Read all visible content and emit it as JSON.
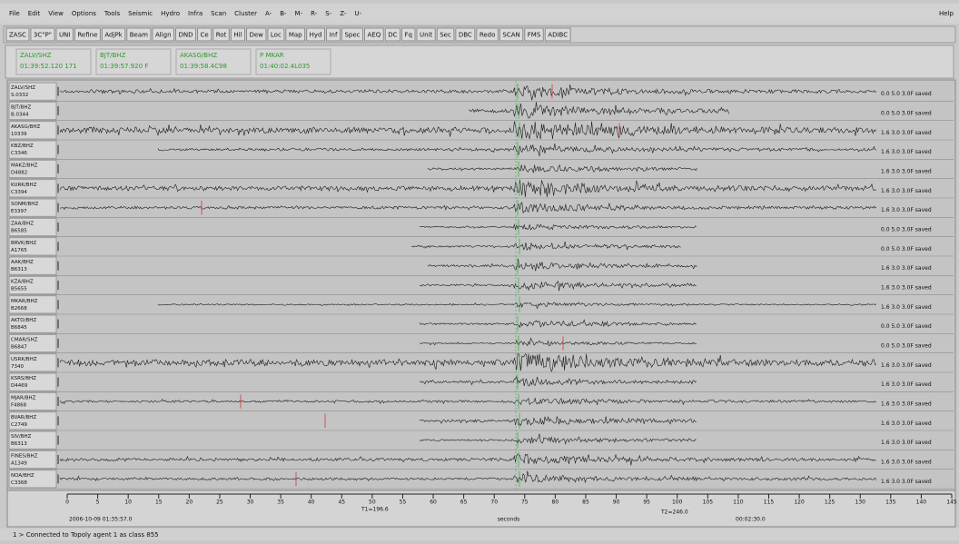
{
  "menu": [
    "File",
    "Edit",
    "View",
    "Options",
    "Tools",
    "Seismic",
    "Hydro",
    "Infra",
    "Scan",
    "Cluster",
    "A-",
    "B-",
    "M-",
    "R-",
    "S-",
    "Z-",
    "U-"
  ],
  "help": "Help",
  "toolbar": [
    "ZASC",
    "3C\"P\"",
    "UNI",
    "Refine",
    "AdjPk",
    "Beam",
    "Align",
    "DND",
    "Ce",
    "Rot",
    "Hil",
    "Dew",
    "Loc",
    "Map",
    "Hyd",
    "Inf",
    "Spec",
    "AEQ",
    "DC",
    "Fq",
    "Unit",
    "Sec",
    "DBC",
    "Redo",
    "SCAN",
    "FMS",
    "ADIBC"
  ],
  "arrivals": [
    {
      "name": "ZALV/SHZ",
      "time": "01:39:52.120 171"
    },
    {
      "name": "BJT/BHZ",
      "time": "01:39:57.920 F"
    },
    {
      "name": "AKASG/BHZ",
      "time": "01:39:58.4C98"
    },
    {
      "name": "P  MKAR",
      "time": "01:40:02.4L035"
    }
  ],
  "traces": [
    {
      "station": "ZALV/SHZ",
      "channel": "S.0332",
      "info": "0.0  5.0  3.0F saved"
    },
    {
      "station": "BJT/BHZ",
      "channel": "B.0344",
      "info": "0.0  5.0  3.0F saved"
    },
    {
      "station": "AKASG/BHZ",
      "channel": "10339",
      "info": "1.6  3.0  3.0F saved"
    },
    {
      "station": "KBZ/BHZ",
      "channel": "C3346",
      "info": "1.6  3.0  3.0F saved"
    },
    {
      "station": "MAKZ/BHZ",
      "channel": "D4882",
      "info": "1.6  3.0  3.0F saved"
    },
    {
      "station": "KURK/BHZ",
      "channel": "C3394",
      "info": "1.6  3.0  3.0F saved"
    },
    {
      "station": "SONM/BHZ",
      "channel": "E3397",
      "info": "1.6  3.0  3.0F saved"
    },
    {
      "station": "ZAA/BHZ",
      "channel": "B6585",
      "info": "0.0  5.0  3.0F saved"
    },
    {
      "station": "BRVK/BHZ",
      "channel": "A1765",
      "info": "0.0  5.0  3.0F saved"
    },
    {
      "station": "AAK/BHZ",
      "channel": "B6313",
      "info": "1.6  3.0  3.0F saved"
    },
    {
      "station": "KZA/BHZ",
      "channel": "B5655",
      "info": "1.6  3.0  3.0F saved"
    },
    {
      "station": "MKAR/BHZ",
      "channel": "B2668",
      "info": "1.6  3.0  3.0F saved"
    },
    {
      "station": "AKTO/BHZ",
      "channel": "B6845",
      "info": "0.0  5.0  3.0F saved"
    },
    {
      "station": "CMAR/SHZ",
      "channel": "B6847",
      "info": "0.0  5.0  3.0F saved"
    },
    {
      "station": "USRK/BHZ",
      "channel": "7340",
      "info": "1.6  3.0  3.0F saved"
    },
    {
      "station": "KSRS/BHZ",
      "channel": "D4469",
      "info": "1.6  3.0  3.0F saved"
    },
    {
      "station": "MJAR/BHZ",
      "channel": "F4868",
      "info": "1.6  3.0  3.0F saved"
    },
    {
      "station": "BVAR/BHZ",
      "channel": "C2749",
      "info": "1.6  3.0  3.0F saved"
    },
    {
      "station": "SIV/BHZ",
      "channel": "B6313",
      "info": "1.6  3.0  3.0F saved"
    },
    {
      "station": "FINES/BHZ",
      "channel": "A1349",
      "info": "1.6  3.0  3.0F saved"
    },
    {
      "station": "NOA/BHZ",
      "channel": "C3368",
      "info": "1.6  3.0  3.0F saved"
    }
  ],
  "time_axis": {
    "ticks": [
      0,
      5,
      10,
      15,
      20,
      25,
      30,
      35,
      40,
      45,
      50,
      55,
      60,
      65,
      70,
      75,
      80,
      85,
      90,
      95,
      100,
      105,
      110,
      115,
      120,
      125,
      130,
      135,
      140,
      145
    ],
    "label": "seconds",
    "start": "2006-10-09 01:35:57.0",
    "marker1": "T1=196.6",
    "marker2": "T2=246.0",
    "end": "00:02:30.0"
  },
  "status": "1 > Connected to Topoly agent 1 as class 855"
}
